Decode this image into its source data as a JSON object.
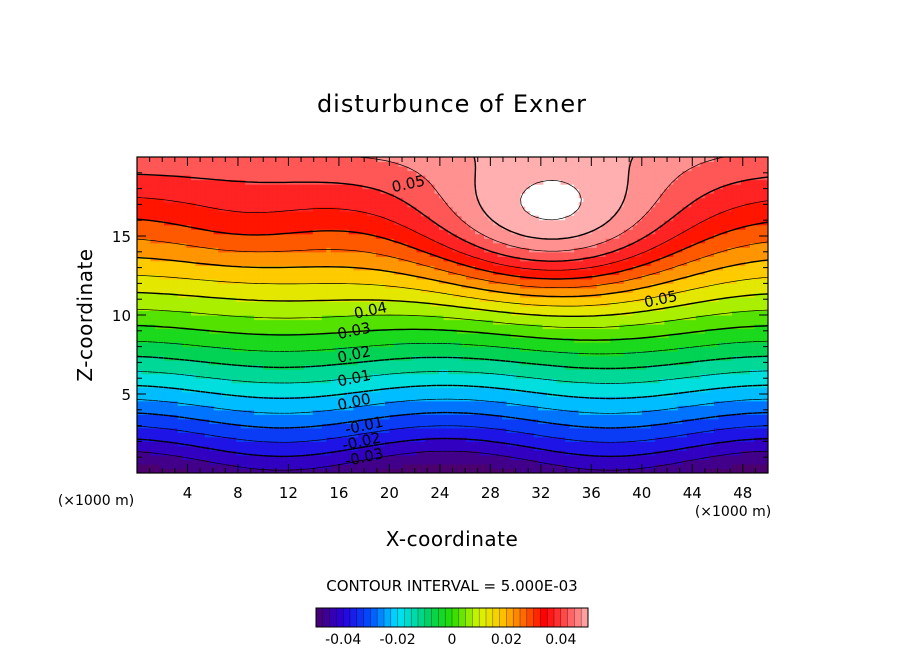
{
  "chart_data": {
    "type": "contour",
    "title": "disturbunce of Exner",
    "xlabel": "X-coordinate",
    "ylabel": "Z-coordinate",
    "x_unit": "(×1000 m)",
    "z_unit": "(×1000 m)",
    "xlim": [
      0,
      50
    ],
    "zlim": [
      0,
      20
    ],
    "x_ticks": [
      "4",
      "8",
      "12",
      "16",
      "20",
      "24",
      "28",
      "32",
      "36",
      "40",
      "44",
      "48"
    ],
    "z_ticks": [
      "5",
      "10",
      "15"
    ],
    "contour_interval_label": "CONTOUR INTERVAL = 5.000E-03",
    "contour_interval": 0.005,
    "value_range": [
      -0.05,
      0.05
    ],
    "overflow_region": "values above 0.055 left unfilled (white)",
    "contour_labels": [
      {
        "text": "0.05",
        "x": 21.5,
        "z": 18.3
      },
      {
        "text": "0.05",
        "x": 41.5,
        "z": 11.0
      },
      {
        "text": "0.04",
        "x": 18.5,
        "z": 10.3
      },
      {
        "text": "0.03",
        "x": 17.2,
        "z": 9.0
      },
      {
        "text": "0.02",
        "x": 17.2,
        "z": 7.5
      },
      {
        "text": "0.01",
        "x": 17.2,
        "z": 6.0
      },
      {
        "text": "0.00",
        "x": 17.2,
        "z": 4.5
      },
      {
        "text": "-0.01",
        "x": 18.0,
        "z": 3.0
      },
      {
        "text": "-0.02",
        "x": 17.8,
        "z": 2.0
      },
      {
        "text": "-0.03",
        "x": 18.0,
        "z": 1.0
      }
    ],
    "colorbar": {
      "tick_labels": [
        "-0.04",
        "-0.02",
        "0",
        "0.02",
        "0.04"
      ],
      "tick_values": [
        -0.04,
        -0.02,
        0,
        0.02,
        0.04
      ],
      "range": [
        -0.05,
        0.05
      ]
    }
  }
}
